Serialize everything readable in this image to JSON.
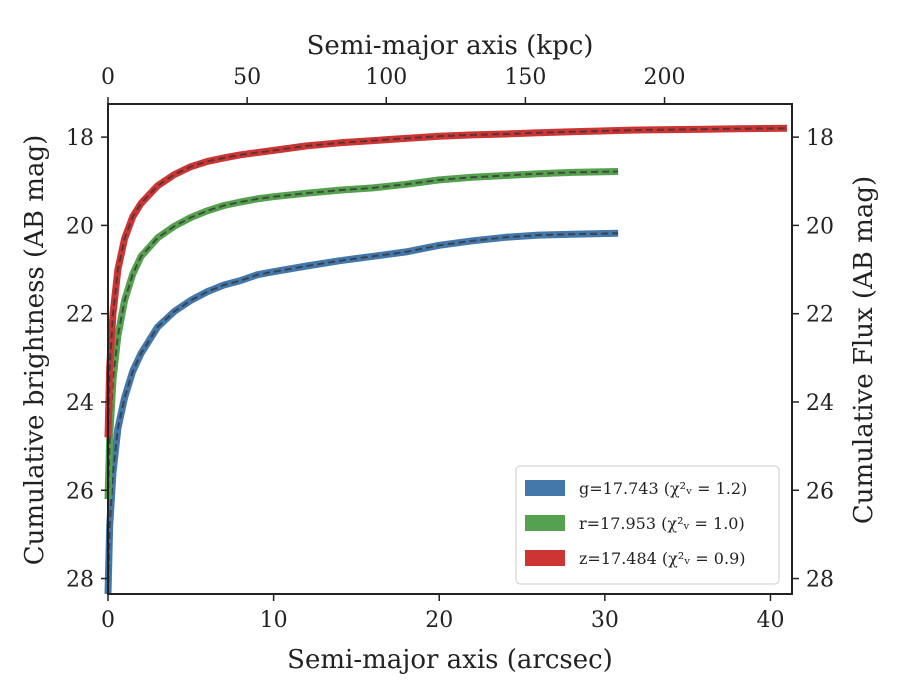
{
  "chart_data": {
    "type": "line",
    "xlabel": "Semi-major axis (arcsec)",
    "x2label": "Semi-major axis (kpc)",
    "ylabel": "Cumulative brightness (AB mag)",
    "y2label": "Cumulative Flux (AB mag)",
    "xlim": [
      0,
      41.3
    ],
    "ylim": [
      28.35,
      17.25
    ],
    "y_inverted": true,
    "x2lim": [
      0,
      245.8
    ],
    "x_ticks": [
      "0",
      "10",
      "20",
      "30",
      "40"
    ],
    "x_tick_values": [
      0,
      10,
      20,
      30,
      40
    ],
    "x2_ticks": [
      "0",
      "50",
      "100",
      "150",
      "200"
    ],
    "x2_tick_values": [
      0,
      50,
      100,
      150,
      200
    ],
    "y_ticks": [
      "18",
      "20",
      "22",
      "24",
      "26",
      "28"
    ],
    "y_tick_values": [
      18,
      20,
      22,
      24,
      26,
      28
    ],
    "legend_position": "lower right",
    "series": [
      {
        "name": "g=17.743",
        "chi": "(χ²ᵥ = 1.2)",
        "color": "#4477aa",
        "x": [
          0,
          0.1,
          0.3,
          0.6,
          1.0,
          1.5,
          2,
          3,
          4,
          5,
          6,
          7,
          8,
          9,
          10,
          12,
          14,
          16,
          18,
          20,
          22,
          24,
          26,
          28,
          30.8
        ],
        "y": [
          28.35,
          26.8,
          25.6,
          24.6,
          23.9,
          23.3,
          22.9,
          22.3,
          21.95,
          21.7,
          21.5,
          21.35,
          21.25,
          21.12,
          21.05,
          20.92,
          20.8,
          20.7,
          20.6,
          20.45,
          20.35,
          20.27,
          20.22,
          20.2,
          20.18
        ]
      },
      {
        "name": "r=17.953",
        "chi": "(χ²ᵥ = 1.0)",
        "color": "#55a14f",
        "x": [
          0,
          0.1,
          0.3,
          0.6,
          1.0,
          1.5,
          2,
          3,
          4,
          5,
          6,
          7,
          8,
          9,
          10,
          12,
          14,
          16,
          18,
          20,
          22,
          24,
          26,
          28,
          30.8
        ],
        "y": [
          26.2,
          24.8,
          23.5,
          22.5,
          21.7,
          21.1,
          20.7,
          20.28,
          20.02,
          19.82,
          19.67,
          19.55,
          19.47,
          19.4,
          19.35,
          19.27,
          19.2,
          19.15,
          19.07,
          18.97,
          18.91,
          18.87,
          18.83,
          18.8,
          18.78
        ]
      },
      {
        "name": "z=17.484",
        "chi": "(χ²ᵥ = 0.9)",
        "color": "#cd3535",
        "x": [
          0,
          0.1,
          0.3,
          0.6,
          1.0,
          1.5,
          2,
          3,
          4,
          5,
          6,
          7,
          8,
          10,
          12,
          14,
          16,
          18,
          20,
          22,
          24,
          26,
          28,
          30,
          32,
          34,
          36,
          38,
          41
        ],
        "y": [
          24.8,
          23.2,
          22.0,
          21.0,
          20.3,
          19.8,
          19.5,
          19.1,
          18.85,
          18.67,
          18.55,
          18.47,
          18.4,
          18.3,
          18.2,
          18.13,
          18.08,
          18.03,
          17.98,
          17.95,
          17.93,
          17.9,
          17.88,
          17.86,
          17.84,
          17.83,
          17.82,
          17.81,
          17.8
        ]
      }
    ]
  }
}
